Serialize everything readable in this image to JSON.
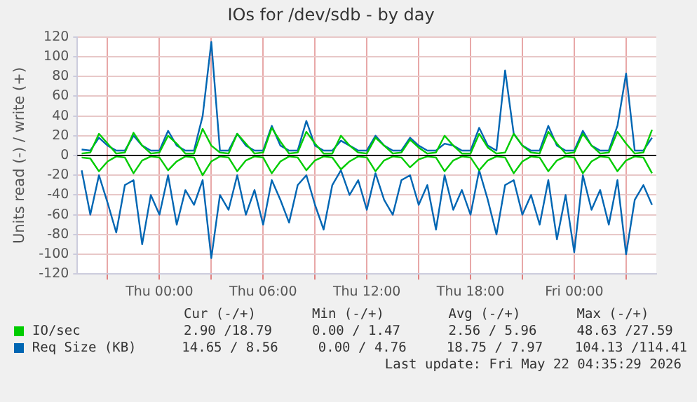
{
  "chart_data": {
    "type": "line",
    "title": "IOs for /dev/sdb - by day",
    "ylabel": "Units read (-) / write (+)",
    "x": [
      "2026-05-20T19:30",
      "2026-05-20T20:00",
      "2026-05-20T20:30",
      "2026-05-20T21:00",
      "2026-05-20T21:30",
      "2026-05-20T22:00",
      "2026-05-20T22:30",
      "2026-05-20T23:00",
      "2026-05-20T23:30",
      "2026-05-21T00:00",
      "2026-05-21T00:30",
      "2026-05-21T01:00",
      "2026-05-21T01:30",
      "2026-05-21T02:00",
      "2026-05-21T02:30",
      "2026-05-21T03:00",
      "2026-05-21T03:30",
      "2026-05-21T04:00",
      "2026-05-21T04:30",
      "2026-05-21T05:00",
      "2026-05-21T05:30",
      "2026-05-21T06:00",
      "2026-05-21T06:30",
      "2026-05-21T07:00",
      "2026-05-21T07:30",
      "2026-05-21T08:00",
      "2026-05-21T08:30",
      "2026-05-21T09:00",
      "2026-05-21T09:30",
      "2026-05-21T10:00",
      "2026-05-21T10:30",
      "2026-05-21T11:00",
      "2026-05-21T11:30",
      "2026-05-21T12:00",
      "2026-05-21T12:30",
      "2026-05-21T13:00",
      "2026-05-21T13:30",
      "2026-05-21T14:00",
      "2026-05-21T14:30",
      "2026-05-21T15:00",
      "2026-05-21T15:30",
      "2026-05-21T16:00",
      "2026-05-21T16:30",
      "2026-05-21T17:00",
      "2026-05-21T17:30",
      "2026-05-21T18:00",
      "2026-05-21T18:30",
      "2026-05-21T19:00",
      "2026-05-21T19:30",
      "2026-05-21T20:00",
      "2026-05-21T20:30",
      "2026-05-21T21:00",
      "2026-05-21T21:30",
      "2026-05-21T22:00",
      "2026-05-21T22:30",
      "2026-05-21T23:00",
      "2026-05-21T23:30",
      "2026-05-22T00:00",
      "2026-05-22T00:30",
      "2026-05-22T01:00",
      "2026-05-22T01:30",
      "2026-05-22T02:00",
      "2026-05-22T02:30",
      "2026-05-22T03:00",
      "2026-05-22T03:30",
      "2026-05-22T04:00",
      "2026-05-22T04:30"
    ],
    "xlim": [
      "2026-05-20T19:15",
      "2026-05-22T04:45"
    ],
    "xticks": [
      {
        "value": "2026-05-20T21:00",
        "label": null
      },
      {
        "value": "2026-05-21T00:00",
        "label": "Thu 00:00"
      },
      {
        "value": "2026-05-21T03:00",
        "label": null
      },
      {
        "value": "2026-05-21T06:00",
        "label": "Thu 06:00"
      },
      {
        "value": "2026-05-21T09:00",
        "label": null
      },
      {
        "value": "2026-05-21T12:00",
        "label": "Thu 12:00"
      },
      {
        "value": "2026-05-21T15:00",
        "label": null
      },
      {
        "value": "2026-05-21T18:00",
        "label": "Thu 18:00"
      },
      {
        "value": "2026-05-21T21:00",
        "label": null
      },
      {
        "value": "2026-05-22T00:00",
        "label": "Fri 00:00"
      },
      {
        "value": "2026-05-22T03:00",
        "label": null
      }
    ],
    "ylim": [
      -120,
      120
    ],
    "yticks": [
      -120,
      -100,
      -80,
      -60,
      -40,
      -20,
      0,
      20,
      40,
      60,
      80,
      100,
      120
    ],
    "grid": true,
    "legend": "bottom",
    "marker": "none",
    "line_style": "solid",
    "ref_lines": [
      {
        "axis": "y",
        "value": 0,
        "color": "#000000"
      }
    ],
    "series": [
      {
        "name": "IO/sec",
        "color": "#00cc00",
        "values": [
          2,
          3,
          22,
          12,
          2,
          3,
          23,
          10,
          2,
          3,
          20,
          12,
          2,
          2,
          27,
          10,
          3,
          2,
          22,
          12,
          2,
          3,
          28,
          14,
          2,
          3,
          24,
          12,
          2,
          2,
          20,
          10,
          3,
          2,
          18,
          10,
          2,
          3,
          16,
          8,
          2,
          3,
          20,
          10,
          2,
          2,
          22,
          8,
          2,
          3,
          22,
          10,
          3,
          2,
          24,
          12,
          2,
          3,
          22,
          10,
          2,
          3,
          24,
          12,
          2,
          3,
          26
        ]
      },
      {
        "color": "#00cc00",
        "values": [
          -2,
          -3,
          -16,
          -6,
          -1,
          -2,
          -18,
          -5,
          -1,
          -2,
          -15,
          -6,
          -1,
          -2,
          -20,
          -6,
          -1,
          -2,
          -16,
          -5,
          -1,
          -2,
          -18,
          -6,
          -1,
          -2,
          -15,
          -5,
          -1,
          -2,
          -14,
          -6,
          -1,
          -2,
          -16,
          -5,
          -1,
          -2,
          -12,
          -4,
          -1,
          -2,
          -16,
          -5,
          -1,
          -2,
          -15,
          -5,
          -1,
          -2,
          -18,
          -6,
          -1,
          -2,
          -16,
          -5,
          -1,
          -2,
          -18,
          -6,
          -1,
          -2,
          -16,
          -5,
          -1,
          -2,
          -18
        ]
      },
      {
        "name": "Req Size (KB)",
        "color": "#0066b3",
        "values": [
          6,
          5,
          18,
          10,
          5,
          5,
          20,
          10,
          5,
          5,
          25,
          10,
          5,
          5,
          40,
          115,
          5,
          5,
          22,
          10,
          5,
          5,
          30,
          10,
          5,
          5,
          35,
          10,
          5,
          5,
          15,
          10,
          5,
          5,
          20,
          10,
          5,
          5,
          18,
          10,
          5,
          5,
          12,
          10,
          5,
          5,
          28,
          10,
          5,
          86,
          22,
          10,
          5,
          5,
          30,
          10,
          5,
          5,
          25,
          10,
          5,
          5,
          30,
          83,
          5,
          5,
          18
        ]
      },
      {
        "color": "#0066b3",
        "values": [
          -15,
          -60,
          -20,
          -48,
          -78,
          -30,
          -25,
          -90,
          -40,
          -60,
          -20,
          -70,
          -35,
          -50,
          -25,
          -104,
          -40,
          -55,
          -20,
          -60,
          -35,
          -70,
          -25,
          -45,
          -68,
          -30,
          -20,
          -50,
          -75,
          -30,
          -15,
          -40,
          -25,
          -55,
          -18,
          -45,
          -60,
          -25,
          -20,
          -50,
          -30,
          -75,
          -20,
          -55,
          -35,
          -60,
          -15,
          -45,
          -80,
          -30,
          -25,
          -60,
          -40,
          -70,
          -25,
          -85,
          -40,
          -98,
          -20,
          -55,
          -35,
          -70,
          -25,
          -100,
          -45,
          -30,
          -50
        ]
      }
    ],
    "annotations": [
      "Cur (-/+)       Min (-/+)        Avg (-/+)       Max (-/+)",
      "2.90 /18.79     0.00 / 1.47      2.56 / 5.96     48.63 /27.59",
      "14.65 / 8.56     0.00 / 4.76     18.75 / 7.97    104.13 /114.41",
      "Last update: Fri May 22 04:35:29 2026"
    ]
  }
}
